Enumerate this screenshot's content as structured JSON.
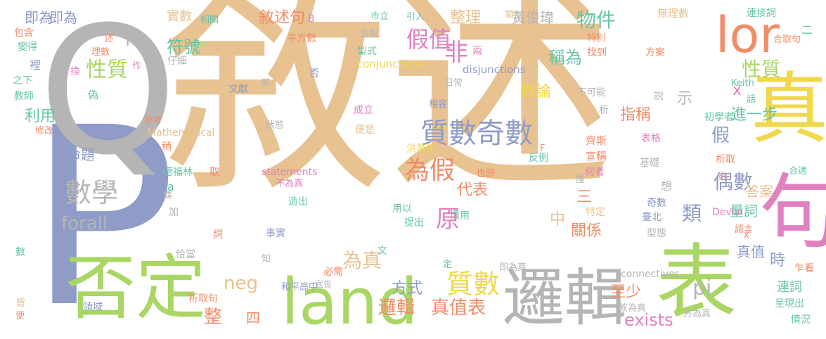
{
  "words": [
    {
      "text": "敘述",
      "color": "#e8c291"
    },
    {
      "text": "P",
      "color": "#8f9cc8"
    },
    {
      "text": "Q",
      "color": "#b5b5b5"
    },
    {
      "text": "否定",
      "color": "#a9d664"
    },
    {
      "text": "真",
      "color": "#f0d84a"
    },
    {
      "text": "句",
      "color": "#e081c0"
    },
    {
      "text": "表",
      "color": "#a9d664"
    },
    {
      "text": "land",
      "color": "#a9d664"
    },
    {
      "text": "邏輯",
      "color": "#b5b5b5"
    },
    {
      "text": "lor",
      "color": "#f28c68"
    },
    {
      "text": "質數",
      "color": "#8f9cc8"
    },
    {
      "text": "奇數",
      "color": "#8f9cc8"
    },
    {
      "text": "數學",
      "color": "#b5b5b5"
    },
    {
      "text": "forall",
      "color": "#b5b5b5"
    },
    {
      "text": "為假",
      "color": "#f28c68"
    },
    {
      "text": "性質",
      "color": "#a9d664"
    },
    {
      "text": "性質",
      "color": "#a9d664"
    },
    {
      "text": "符號",
      "color": "#66c4a8"
    },
    {
      "text": "敘述句",
      "color": "#f28c68"
    },
    {
      "text": "假值",
      "color": "#e081c0"
    },
    {
      "text": "物件",
      "color": "#66c4a8"
    },
    {
      "text": "稱為",
      "color": "#66c4a8"
    },
    {
      "text": "數論",
      "color": "#f0d84a"
    },
    {
      "text": "偶數",
      "color": "#8f9cc8"
    },
    {
      "text": "質數",
      "color": "#f0d84a"
    },
    {
      "text": "pi",
      "color": "#b5b5b5"
    },
    {
      "text": "exists",
      "color": "#e081c0"
    },
    {
      "text": "neg",
      "color": "#e8c291"
    },
    {
      "text": "真值表",
      "color": "#f28c68"
    },
    {
      "text": "邏輯",
      "color": "#f28c68"
    },
    {
      "text": "為真",
      "color": "#e8c291"
    },
    {
      "text": "命題",
      "color": "#8f9cc8"
    },
    {
      "text": "利用",
      "color": "#66c4a8"
    },
    {
      "text": "實數",
      "color": "#e8c291"
    },
    {
      "text": "整理",
      "color": "#e8c291"
    },
    {
      "text": "黃俊瑋",
      "color": "#b5b5b5"
    },
    {
      "text": "即為",
      "color": "#8f9cc8"
    },
    {
      "text": "指稱",
      "color": "#f28c68"
    },
    {
      "text": "進一步",
      "color": "#66c4a8"
    },
    {
      "text": "量詞",
      "color": "#66c4a8"
    },
    {
      "text": "答案",
      "color": "#e8c291"
    },
    {
      "text": "關係",
      "color": "#f28c68"
    },
    {
      "text": "代表",
      "color": "#f28c68"
    },
    {
      "text": "方式",
      "color": "#8f9cc8"
    },
    {
      "text": "至少",
      "color": "#f28c68"
    },
    {
      "text": "真值",
      "color": "#8f9cc8"
    },
    {
      "text": "連詞",
      "color": "#66c4a8"
    },
    {
      "text": "呈現出",
      "color": "#66c4a8"
    },
    {
      "text": "conjunctions",
      "color": "#f0d84a"
    },
    {
      "text": "disjunctions",
      "color": "#8f9cc8"
    },
    {
      "text": "statements",
      "color": "#e081c0"
    },
    {
      "text": "Mathematical",
      "color": "#e8c291"
    },
    {
      "text": "connectives",
      "color": "#b5b5b5"
    },
    {
      "text": "Keith",
      "color": "#66c4a8"
    },
    {
      "text": "Devlin",
      "color": "#e081c0"
    },
    {
      "text": "無理數",
      "color": "#e8c291"
    },
    {
      "text": "連接詞",
      "color": "#66c4a8"
    },
    {
      "text": "合取句",
      "color": "#f28c68"
    },
    {
      "text": "析取句",
      "color": "#f28c68"
    },
    {
      "text": "析取",
      "color": "#f28c68"
    },
    {
      "text": "合取",
      "color": "#b5b5b5"
    },
    {
      "text": "合適",
      "color": "#66c4a8"
    },
    {
      "text": "不可能",
      "color": "#b5b5b5"
    },
    {
      "text": "初學者",
      "color": "#66c4a8"
    },
    {
      "text": "表格",
      "color": "#e081c0"
    },
    {
      "text": "基礎",
      "color": "#b5b5b5"
    },
    {
      "text": "齊斯",
      "color": "#f28c68"
    },
    {
      "text": "宣稱",
      "color": "#f28c68"
    },
    {
      "text": "何者",
      "color": "#e081c0"
    },
    {
      "text": "奇數",
      "color": "#8f9cc8"
    },
    {
      "text": "臺北",
      "color": "#8f9cc8"
    },
    {
      "text": "型態",
      "color": "#b5b5b5"
    },
    {
      "text": "語言",
      "color": "#f28c68"
    },
    {
      "text": "特定",
      "color": "#e8c291"
    },
    {
      "text": "洪萬生",
      "color": "#f0d84a"
    },
    {
      "text": "反例",
      "color": "#66c4a8"
    },
    {
      "text": "也許",
      "color": "#f28c68"
    },
    {
      "text": "不為真",
      "color": "#e081c0"
    },
    {
      "text": "造出",
      "color": "#66c4a8"
    },
    {
      "text": "提出",
      "color": "#66c4a8"
    },
    {
      "text": "用以",
      "color": "#66c4a8"
    },
    {
      "text": "慣用",
      "color": "#66c4a8"
    },
    {
      "text": "事實",
      "color": "#8f9cc8"
    },
    {
      "text": "必需",
      "color": "#f28c68"
    },
    {
      "text": "宣告",
      "color": "#b5b5b5"
    },
    {
      "text": "和平高中",
      "color": "#8f9cc8"
    },
    {
      "text": "即為真",
      "color": "#b5b5b5"
    },
    {
      "text": "敘為真",
      "color": "#b5b5b5"
    },
    {
      "text": "方為真",
      "color": "#b5b5b5"
    },
    {
      "text": "領域",
      "color": "#8f9cc8"
    },
    {
      "text": "德福林",
      "color": "#66c4a8"
    },
    {
      "text": "參考",
      "color": "#f28c68"
    },
    {
      "text": "教師",
      "color": "#66c4a8"
    },
    {
      "text": "修改",
      "color": "#f28c68"
    },
    {
      "text": "文獻",
      "color": "#8f9cc8"
    },
    {
      "text": "仔細",
      "color": "#b5b5b5"
    },
    {
      "text": "理數",
      "color": "#f28c68"
    },
    {
      "text": "變得",
      "color": "#66c4a8"
    },
    {
      "text": "包含",
      "color": "#f28c68"
    },
    {
      "text": "裡",
      "color": "#8f9cc8"
    },
    {
      "text": "之下",
      "color": "#66c4a8"
    },
    {
      "text": "平方數",
      "color": "#f28c68"
    },
    {
      "text": "型式",
      "color": "#66c4a8"
    },
    {
      "text": "類似",
      "color": "#e8c291"
    },
    {
      "text": "引入",
      "color": "#66c4a8"
    },
    {
      "text": "相關",
      "color": "#66c4a8"
    },
    {
      "text": "市立",
      "color": "#66c4a8"
    },
    {
      "text": "特別",
      "color": "#f28c68"
    },
    {
      "text": "找到",
      "color": "#f28c68"
    },
    {
      "text": "方案",
      "color": "#f28c68"
    },
    {
      "text": "日常",
      "color": "#b5b5b5"
    },
    {
      "text": "相容",
      "color": "#8f9cc8"
    },
    {
      "text": "成立",
      "color": "#e081c0"
    },
    {
      "text": "便是",
      "color": "#e8c291"
    },
    {
      "text": "狀態",
      "color": "#b5b5b5"
    },
    {
      "text": "稍",
      "color": "#f28c68"
    },
    {
      "text": "取",
      "color": "#f28c68"
    },
    {
      "text": "加",
      "color": "#b5b5b5"
    },
    {
      "text": "恰當",
      "color": "#b5b5b5"
    },
    {
      "text": "知",
      "color": "#b5b5b5"
    },
    {
      "text": "數",
      "color": "#66c4a8"
    },
    {
      "text": "皆",
      "color": "#e8c291"
    },
    {
      "text": "便",
      "color": "#f28c68"
    },
    {
      "text": "詞",
      "color": "#f28c68"
    },
    {
      "text": "即為",
      "color": "#8f9cc8"
    },
    {
      "text": "非",
      "color": "#e081c0"
    },
    {
      "text": "原",
      "color": "#e081c0"
    },
    {
      "text": "假",
      "color": "#8f9cc8"
    },
    {
      "text": "示",
      "color": "#b5b5b5"
    },
    {
      "text": "類",
      "color": "#8f9cc8"
    },
    {
      "text": "三",
      "color": "#f28c68"
    },
    {
      "text": "中",
      "color": "#e8c291"
    },
    {
      "text": "整",
      "color": "#f28c68"
    },
    {
      "text": "四",
      "color": "#f28c68"
    },
    {
      "text": "時",
      "color": "#8f9cc8"
    },
    {
      "text": "想",
      "color": "#b5b5b5"
    },
    {
      "text": "x",
      "color": "#e081c0"
    },
    {
      "text": "T",
      "color": "#b5b5b5"
    },
    {
      "text": "B",
      "color": "#e081c0"
    },
    {
      "text": "F",
      "color": "#f28c68"
    },
    {
      "text": "a",
      "color": "#66c4a8"
    },
    {
      "text": "x",
      "color": "#f28c68"
    },
    {
      "text": "二",
      "color": "#66c4a8"
    },
    {
      "text": "否",
      "color": "#8f9cc8"
    },
    {
      "text": "兩",
      "color": "#e081c0"
    },
    {
      "text": "說",
      "color": "#b5b5b5"
    },
    {
      "text": "析",
      "color": "#b5b5b5"
    },
    {
      "text": "述",
      "color": "#f28c68"
    },
    {
      "text": "換",
      "color": "#e081c0"
    },
    {
      "text": "作",
      "color": "#e081c0"
    },
    {
      "text": "偽",
      "color": "#66c4a8"
    },
    {
      "text": "新",
      "color": "#b5b5b5"
    },
    {
      "text": "話",
      "color": "#66c4a8"
    },
    {
      "text": "必",
      "color": "#f28c68"
    },
    {
      "text": "乍看",
      "color": "#f28c68"
    },
    {
      "text": "情況",
      "color": "#66c4a8"
    },
    {
      "text": "文",
      "color": "#66c4a8"
    },
    {
      "text": "定",
      "color": "#66c4a8"
    },
    {
      "text": "譯",
      "color": "#b5b5b5"
    },
    {
      "text": "懂",
      "color": "#b5b5b5"
    }
  ]
}
